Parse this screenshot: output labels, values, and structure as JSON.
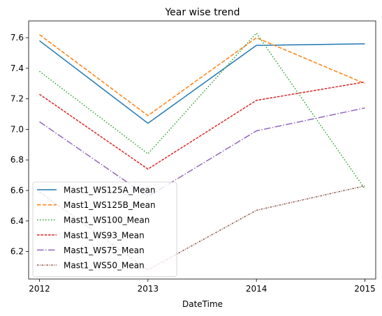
{
  "chart_data": {
    "type": "line",
    "title": "Year wise trend",
    "xlabel": "DateTime",
    "ylabel": "",
    "x": [
      2012,
      2013,
      2014,
      2015
    ],
    "x_tick_labels": [
      "2012",
      "2013",
      "2014",
      "2015"
    ],
    "y_ticks": [
      6.2,
      6.4,
      6.6,
      6.8,
      7.0,
      7.2,
      7.4,
      7.6
    ],
    "y_tick_labels": [
      "6.2",
      "6.4",
      "6.6",
      "6.8",
      "7.0",
      "7.2",
      "7.4",
      "7.6"
    ],
    "ylim": [
      6.02,
      7.71
    ],
    "xlim": [
      2011.9,
      2015.1
    ],
    "grid": false,
    "legend_position": "lower-left",
    "series": [
      {
        "name": "Mast1_WS125A_Mean",
        "values": [
          7.58,
          7.04,
          7.55,
          7.56
        ],
        "color": "#1f77b4",
        "dash": "solid"
      },
      {
        "name": "Mast1_WS125B_Mean",
        "values": [
          7.62,
          7.09,
          7.6,
          7.3
        ],
        "color": "#ff7f0e",
        "dash": "dashed"
      },
      {
        "name": "Mast1_WS100_Mean",
        "values": [
          7.38,
          6.84,
          7.63,
          6.61
        ],
        "color": "#2ca02c",
        "dash": "dotted"
      },
      {
        "name": "Mast1_WS93_Mean",
        "values": [
          7.23,
          6.74,
          7.19,
          7.31
        ],
        "color": "#d62728",
        "dash": "densedash"
      },
      {
        "name": "Mast1_WS75_Mean",
        "values": [
          7.05,
          6.56,
          6.99,
          7.14
        ],
        "color": "#9467bd",
        "dash": "dashdot"
      },
      {
        "name": "Mast1_WS50_Mean",
        "values": [
          6.59,
          6.08,
          6.47,
          6.63
        ],
        "color": "#8c564b",
        "dash": "densedot"
      }
    ]
  }
}
